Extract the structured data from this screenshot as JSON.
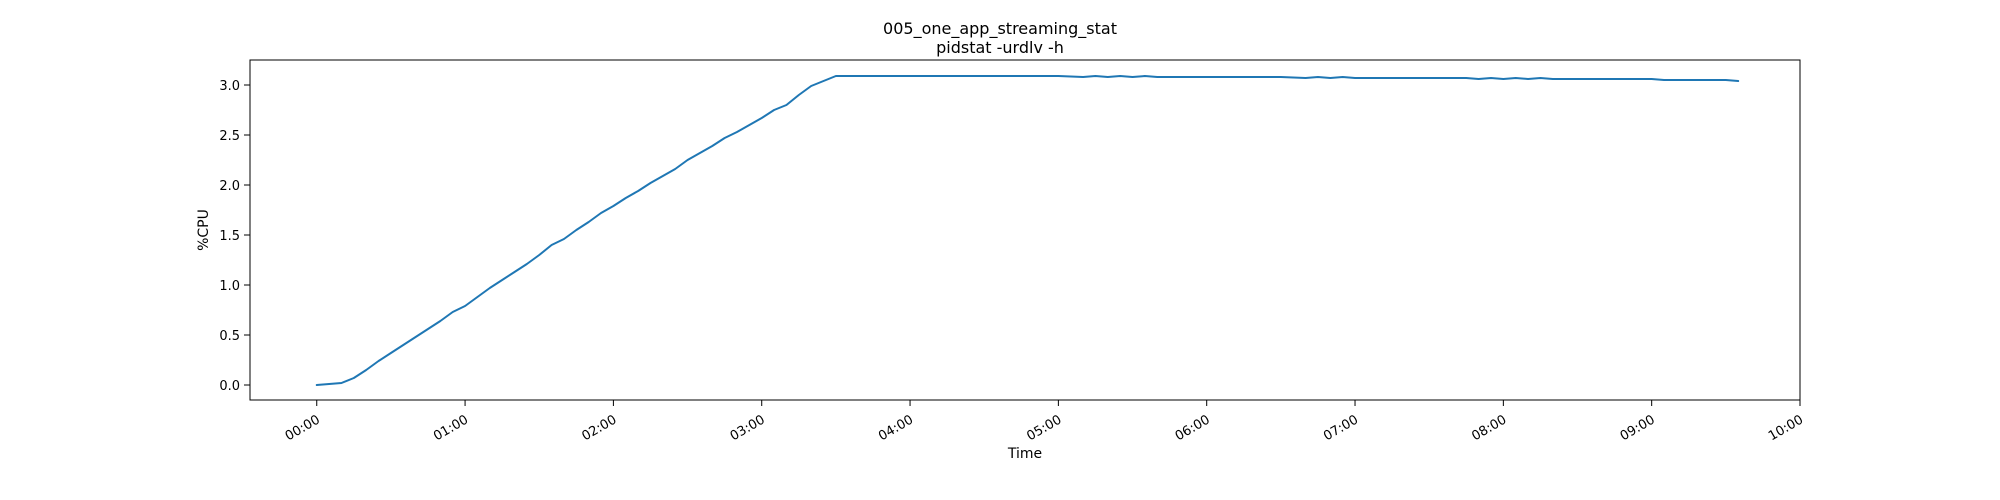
{
  "chart_data": {
    "type": "line",
    "title": "005_one_app_streaming_stat",
    "subtitle": "pidstat -urdlv -h",
    "xlabel": "Time",
    "ylabel": "%CPU",
    "line_color": "#1f77b4",
    "xlim": [
      "-00:27",
      "10:00"
    ],
    "ylim": [
      -0.15,
      3.25
    ],
    "grid": false,
    "x_ticks": [
      "00:00",
      "01:00",
      "02:00",
      "03:00",
      "04:00",
      "05:00",
      "06:00",
      "07:00",
      "08:00",
      "09:00",
      "10:00"
    ],
    "y_ticks": [
      "0.0",
      "0.5",
      "1.0",
      "1.5",
      "2.0",
      "2.5",
      "3.0"
    ],
    "series": [
      {
        "x": [
          "00:00",
          "00:05",
          "00:10",
          "00:15",
          "00:20",
          "00:25",
          "00:30",
          "00:35",
          "00:40",
          "00:45",
          "00:50",
          "00:55",
          "01:00",
          "01:05",
          "01:10",
          "01:15",
          "01:20",
          "01:25",
          "01:30",
          "01:35",
          "01:40",
          "01:45",
          "01:50",
          "01:55",
          "02:00",
          "02:05",
          "02:10",
          "02:15",
          "02:20",
          "02:25",
          "02:30",
          "02:35",
          "02:40",
          "02:45",
          "02:50",
          "02:55",
          "03:00",
          "03:05",
          "03:10",
          "03:15",
          "03:20",
          "03:25",
          "03:30",
          "03:35",
          "03:40",
          "03:45",
          "03:50",
          "04:00",
          "04:30",
          "05:00",
          "05:10",
          "05:15",
          "05:20",
          "05:25",
          "05:30",
          "05:35",
          "05:40",
          "06:00",
          "06:30",
          "06:40",
          "06:45",
          "06:50",
          "06:55",
          "07:00",
          "07:30",
          "07:45",
          "07:50",
          "07:55",
          "08:00",
          "08:05",
          "08:10",
          "08:15",
          "08:20",
          "08:30",
          "09:00",
          "09:05",
          "09:30",
          "09:35"
        ],
        "y": [
          0.0,
          0.01,
          0.02,
          0.07,
          0.15,
          0.24,
          0.32,
          0.4,
          0.48,
          0.56,
          0.64,
          0.73,
          0.79,
          0.88,
          0.97,
          1.05,
          1.13,
          1.21,
          1.3,
          1.4,
          1.46,
          1.55,
          1.63,
          1.72,
          1.79,
          1.87,
          1.94,
          2.02,
          2.09,
          2.16,
          2.25,
          2.32,
          2.39,
          2.47,
          2.53,
          2.6,
          2.67,
          2.75,
          2.8,
          2.9,
          2.99,
          3.04,
          3.09,
          3.09,
          3.09,
          3.09,
          3.09,
          3.09,
          3.09,
          3.09,
          3.08,
          3.09,
          3.08,
          3.09,
          3.08,
          3.09,
          3.08,
          3.08,
          3.08,
          3.07,
          3.08,
          3.07,
          3.08,
          3.07,
          3.07,
          3.07,
          3.06,
          3.07,
          3.06,
          3.07,
          3.06,
          3.07,
          3.06,
          3.06,
          3.06,
          3.05,
          3.05,
          3.04
        ]
      }
    ]
  }
}
